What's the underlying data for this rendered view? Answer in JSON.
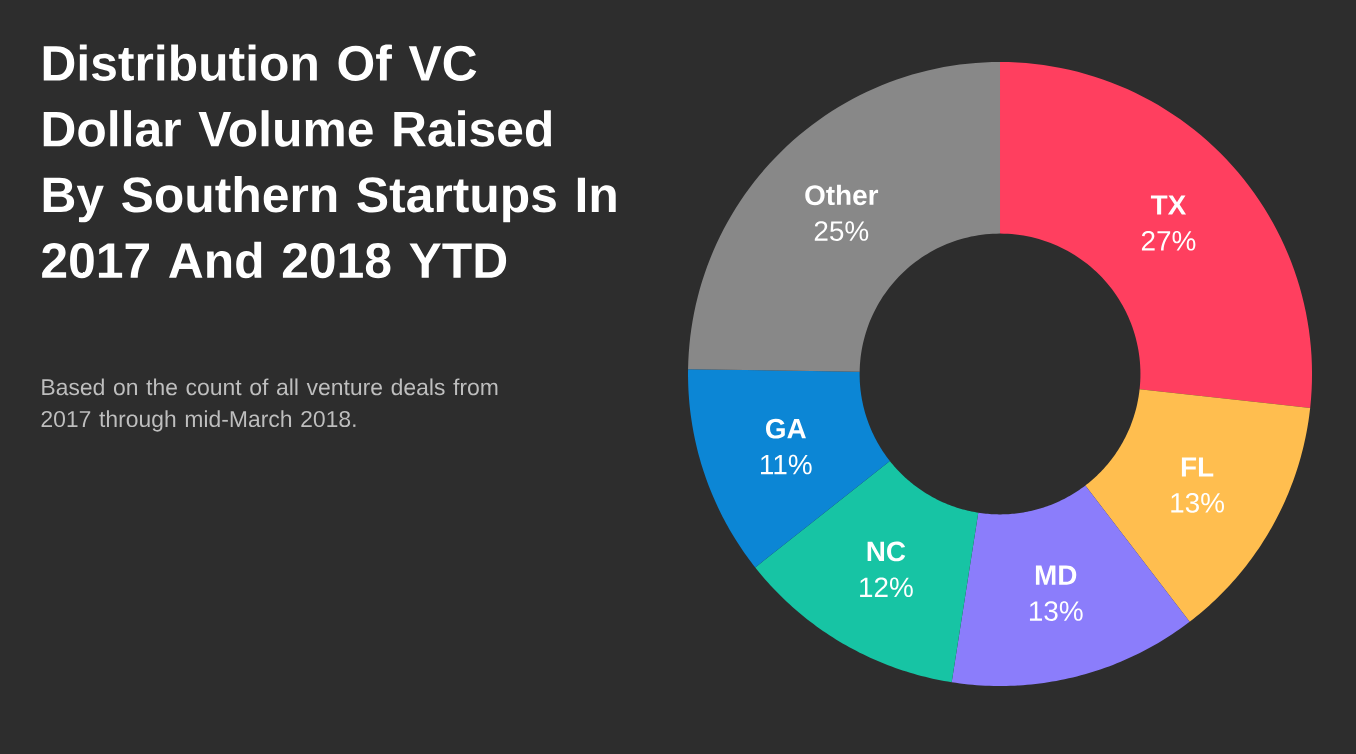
{
  "chart_data": {
    "type": "donut",
    "title": "Distribution Of VC Dollar Volume Raised By Southern Startups In 2017 And 2018 YTD",
    "subtitle": "Based on the count of all venture deals from 2017 through mid-March 2018.",
    "categories": [
      "TX",
      "FL",
      "MD",
      "NC",
      "GA",
      "Other"
    ],
    "values": [
      27,
      13,
      13,
      12,
      11,
      25
    ],
    "value_labels": [
      "27%",
      "13%",
      "13%",
      "12%",
      "11%",
      "25%"
    ],
    "colors": [
      "#ff3f5f",
      "#ffbe4f",
      "#8b7dfb",
      "#17c4a4",
      "#0c86d5",
      "#888888"
    ]
  }
}
